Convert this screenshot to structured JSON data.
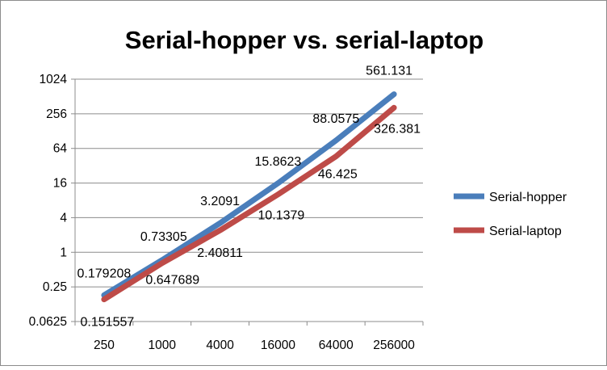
{
  "chart_data": {
    "type": "line",
    "title": "Serial-hopper vs. serial-laptop",
    "xlabel": "",
    "ylabel": "",
    "categories": [
      "250",
      "1000",
      "4000",
      "16000",
      "64000",
      "256000"
    ],
    "y_scale": "log2",
    "ylim": [
      0.0625,
      1024
    ],
    "y_ticks": [
      "0.0625",
      "0.25",
      "1",
      "4",
      "16",
      "64",
      "256",
      "1024"
    ],
    "grid": "horizontal",
    "legend_position": "right",
    "series": [
      {
        "name": "Serial-hopper",
        "color": "#4a7ebb",
        "values": [
          0.179208,
          0.73305,
          3.2091,
          15.8623,
          88.0575,
          561.131
        ],
        "labels": [
          "0.179208",
          "0.73305",
          "3.2091",
          "15.8623",
          "88.0575",
          "561.131"
        ]
      },
      {
        "name": "Serial-laptop",
        "color": "#be4b48",
        "values": [
          0.151557,
          0.647689,
          2.40811,
          10.1379,
          46.425,
          326.381
        ],
        "labels": [
          "0.151557",
          "0.647689",
          "2.40811",
          "10.1379",
          "46.425",
          "326.381"
        ]
      }
    ]
  }
}
